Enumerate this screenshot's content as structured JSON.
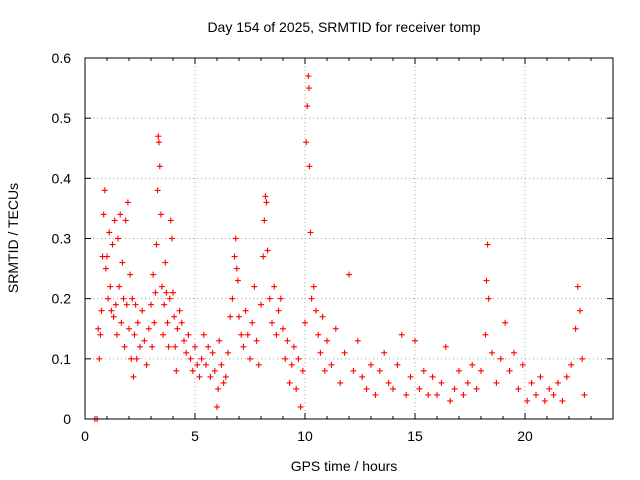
{
  "chart_data": {
    "type": "scatter",
    "title": "Day 154 of 2025, SRMTID for receiver tomp",
    "xlabel": "GPS time / hours",
    "ylabel": "SRMTID / TECUs",
    "xlim": [
      0,
      24
    ],
    "ylim": [
      0,
      0.6
    ],
    "x_ticks": [
      0,
      5,
      10,
      15,
      20
    ],
    "x_tick_labels": [
      "0",
      "5",
      "10",
      "15",
      "20"
    ],
    "y_ticks": [
      0,
      0.1,
      0.2,
      0.3,
      0.4,
      0.5,
      0.6
    ],
    "y_tick_labels": [
      "0",
      "0.1",
      "0.2",
      "0.3",
      "0.4",
      "0.5",
      "0.6"
    ],
    "grid": true,
    "marker": "plus",
    "series": [
      {
        "name": "SRMTID",
        "color": "#ff0000",
        "points": [
          [
            0.45,
            0.0
          ],
          [
            0.55,
            0.0
          ],
          [
            0.6,
            0.15
          ],
          [
            0.65,
            0.1
          ],
          [
            0.7,
            0.14
          ],
          [
            0.75,
            0.18
          ],
          [
            0.8,
            0.27
          ],
          [
            0.85,
            0.34
          ],
          [
            0.9,
            0.38
          ],
          [
            0.95,
            0.25
          ],
          [
            1.0,
            0.27
          ],
          [
            1.05,
            0.2
          ],
          [
            1.1,
            0.31
          ],
          [
            1.15,
            0.22
          ],
          [
            1.2,
            0.18
          ],
          [
            1.25,
            0.29
          ],
          [
            1.3,
            0.17
          ],
          [
            1.35,
            0.33
          ],
          [
            1.4,
            0.19
          ],
          [
            1.45,
            0.14
          ],
          [
            1.5,
            0.3
          ],
          [
            1.55,
            0.22
          ],
          [
            1.6,
            0.34
          ],
          [
            1.65,
            0.16
          ],
          [
            1.7,
            0.26
          ],
          [
            1.75,
            0.2
          ],
          [
            1.8,
            0.12
          ],
          [
            1.85,
            0.33
          ],
          [
            1.9,
            0.19
          ],
          [
            1.95,
            0.36
          ],
          [
            2.0,
            0.15
          ],
          [
            2.05,
            0.24
          ],
          [
            2.1,
            0.1
          ],
          [
            2.15,
            0.2
          ],
          [
            2.2,
            0.07
          ],
          [
            2.25,
            0.14
          ],
          [
            2.3,
            0.19
          ],
          [
            2.35,
            0.1
          ],
          [
            2.4,
            0.16
          ],
          [
            2.5,
            0.12
          ],
          [
            2.6,
            0.18
          ],
          [
            2.7,
            0.13
          ],
          [
            2.8,
            0.09
          ],
          [
            2.9,
            0.15
          ],
          [
            3.0,
            0.19
          ],
          [
            3.05,
            0.12
          ],
          [
            3.1,
            0.24
          ],
          [
            3.15,
            0.16
          ],
          [
            3.2,
            0.21
          ],
          [
            3.25,
            0.29
          ],
          [
            3.3,
            0.38
          ],
          [
            3.33,
            0.47
          ],
          [
            3.36,
            0.46
          ],
          [
            3.4,
            0.42
          ],
          [
            3.45,
            0.34
          ],
          [
            3.5,
            0.22
          ],
          [
            3.55,
            0.14
          ],
          [
            3.6,
            0.19
          ],
          [
            3.65,
            0.26
          ],
          [
            3.7,
            0.21
          ],
          [
            3.75,
            0.16
          ],
          [
            3.8,
            0.12
          ],
          [
            3.85,
            0.2
          ],
          [
            3.9,
            0.33
          ],
          [
            3.95,
            0.3
          ],
          [
            4.0,
            0.21
          ],
          [
            4.05,
            0.17
          ],
          [
            4.1,
            0.12
          ],
          [
            4.15,
            0.08
          ],
          [
            4.2,
            0.15
          ],
          [
            4.3,
            0.18
          ],
          [
            4.4,
            0.16
          ],
          [
            4.5,
            0.13
          ],
          [
            4.6,
            0.11
          ],
          [
            4.7,
            0.14
          ],
          [
            4.8,
            0.1
          ],
          [
            4.9,
            0.08
          ],
          [
            5.0,
            0.12
          ],
          [
            5.1,
            0.09
          ],
          [
            5.2,
            0.07
          ],
          [
            5.3,
            0.1
          ],
          [
            5.4,
            0.14
          ],
          [
            5.5,
            0.09
          ],
          [
            5.6,
            0.12
          ],
          [
            5.7,
            0.07
          ],
          [
            5.8,
            0.11
          ],
          [
            5.9,
            0.08
          ],
          [
            6.0,
            0.02
          ],
          [
            6.05,
            0.05
          ],
          [
            6.1,
            0.13
          ],
          [
            6.2,
            0.09
          ],
          [
            6.3,
            0.06
          ],
          [
            6.4,
            0.07
          ],
          [
            6.5,
            0.11
          ],
          [
            6.6,
            0.17
          ],
          [
            6.7,
            0.2
          ],
          [
            6.8,
            0.27
          ],
          [
            6.85,
            0.3
          ],
          [
            6.9,
            0.25
          ],
          [
            6.95,
            0.23
          ],
          [
            7.0,
            0.17
          ],
          [
            7.1,
            0.14
          ],
          [
            7.2,
            0.12
          ],
          [
            7.3,
            0.18
          ],
          [
            7.4,
            0.14
          ],
          [
            7.5,
            0.1
          ],
          [
            7.6,
            0.16
          ],
          [
            7.7,
            0.22
          ],
          [
            7.8,
            0.13
          ],
          [
            7.9,
            0.09
          ],
          [
            8.0,
            0.19
          ],
          [
            8.1,
            0.27
          ],
          [
            8.15,
            0.33
          ],
          [
            8.2,
            0.37
          ],
          [
            8.25,
            0.36
          ],
          [
            8.3,
            0.28
          ],
          [
            8.4,
            0.2
          ],
          [
            8.5,
            0.16
          ],
          [
            8.6,
            0.22
          ],
          [
            8.7,
            0.14
          ],
          [
            8.8,
            0.18
          ],
          [
            8.9,
            0.2
          ],
          [
            9.0,
            0.15
          ],
          [
            9.1,
            0.1
          ],
          [
            9.2,
            0.13
          ],
          [
            9.3,
            0.06
          ],
          [
            9.4,
            0.09
          ],
          [
            9.5,
            0.12
          ],
          [
            9.6,
            0.05
          ],
          [
            9.7,
            0.1
          ],
          [
            9.8,
            0.02
          ],
          [
            9.9,
            0.08
          ],
          [
            10.0,
            0.16
          ],
          [
            10.05,
            0.46
          ],
          [
            10.1,
            0.52
          ],
          [
            10.15,
            0.57
          ],
          [
            10.18,
            0.55
          ],
          [
            10.2,
            0.42
          ],
          [
            10.25,
            0.31
          ],
          [
            10.3,
            0.2
          ],
          [
            10.4,
            0.22
          ],
          [
            10.5,
            0.18
          ],
          [
            10.6,
            0.14
          ],
          [
            10.7,
            0.11
          ],
          [
            10.8,
            0.17
          ],
          [
            10.9,
            0.08
          ],
          [
            11.0,
            0.13
          ],
          [
            11.2,
            0.09
          ],
          [
            11.4,
            0.15
          ],
          [
            11.6,
            0.06
          ],
          [
            11.8,
            0.11
          ],
          [
            12.0,
            0.24
          ],
          [
            12.2,
            0.08
          ],
          [
            12.4,
            0.13
          ],
          [
            12.6,
            0.07
          ],
          [
            12.8,
            0.05
          ],
          [
            13.0,
            0.09
          ],
          [
            13.2,
            0.04
          ],
          [
            13.4,
            0.08
          ],
          [
            13.6,
            0.11
          ],
          [
            13.8,
            0.06
          ],
          [
            14.0,
            0.05
          ],
          [
            14.2,
            0.09
          ],
          [
            14.4,
            0.14
          ],
          [
            14.6,
            0.04
          ],
          [
            14.8,
            0.07
          ],
          [
            15.0,
            0.13
          ],
          [
            15.2,
            0.05
          ],
          [
            15.4,
            0.08
          ],
          [
            15.6,
            0.04
          ],
          [
            15.8,
            0.07
          ],
          [
            16.0,
            0.04
          ],
          [
            16.2,
            0.06
          ],
          [
            16.4,
            0.12
          ],
          [
            16.6,
            0.03
          ],
          [
            16.8,
            0.05
          ],
          [
            17.0,
            0.08
          ],
          [
            17.2,
            0.04
          ],
          [
            17.4,
            0.06
          ],
          [
            17.6,
            0.09
          ],
          [
            17.8,
            0.05
          ],
          [
            18.0,
            0.08
          ],
          [
            18.2,
            0.14
          ],
          [
            18.25,
            0.23
          ],
          [
            18.3,
            0.29
          ],
          [
            18.35,
            0.2
          ],
          [
            18.5,
            0.11
          ],
          [
            18.7,
            0.06
          ],
          [
            18.9,
            0.1
          ],
          [
            19.1,
            0.16
          ],
          [
            19.3,
            0.08
          ],
          [
            19.5,
            0.11
          ],
          [
            19.7,
            0.05
          ],
          [
            19.9,
            0.09
          ],
          [
            20.1,
            0.03
          ],
          [
            20.3,
            0.06
          ],
          [
            20.5,
            0.04
          ],
          [
            20.7,
            0.07
          ],
          [
            20.9,
            0.03
          ],
          [
            21.1,
            0.05
          ],
          [
            21.3,
            0.04
          ],
          [
            21.5,
            0.06
          ],
          [
            21.7,
            0.03
          ],
          [
            21.9,
            0.07
          ],
          [
            22.1,
            0.09
          ],
          [
            22.3,
            0.15
          ],
          [
            22.4,
            0.22
          ],
          [
            22.5,
            0.18
          ],
          [
            22.6,
            0.1
          ],
          [
            22.7,
            0.04
          ]
        ]
      }
    ]
  }
}
